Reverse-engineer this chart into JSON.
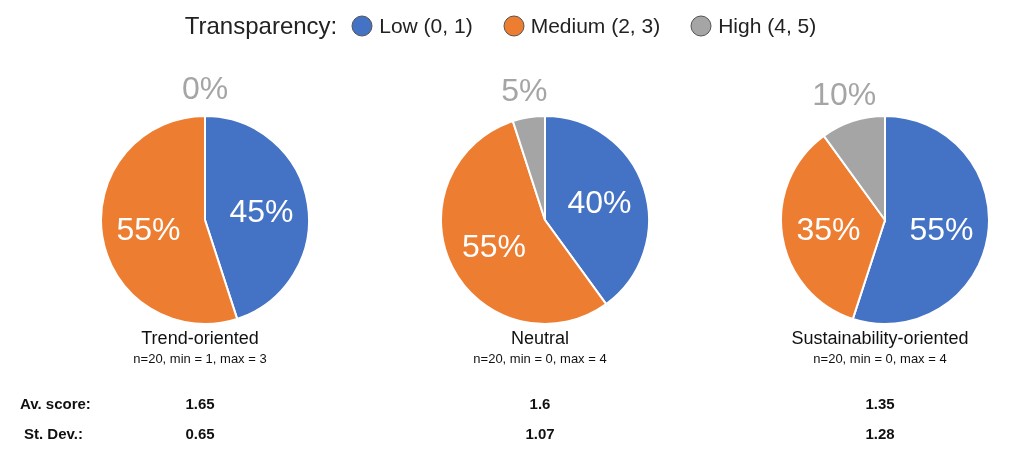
{
  "chart_data": [
    {
      "type": "pie",
      "title": "Trend-oriented",
      "subtitle": "n=20, min = 1, max = 3",
      "legend_title": "Transparency:",
      "legend": "top",
      "categories": [
        "Low (0, 1)",
        "Medium (2, 3)",
        "High (4, 5)"
      ],
      "values": [
        45,
        55,
        0
      ],
      "value_labels": [
        "45%",
        "55%",
        "0%"
      ],
      "colors": [
        "#4472c4",
        "#ed7d31",
        "#a5a5a5"
      ],
      "annotations": [
        "1.65",
        "0.65"
      ]
    },
    {
      "type": "pie",
      "title": "Neutral",
      "subtitle": "n=20, min = 0, max = 4",
      "categories": [
        null,
        null,
        null
      ],
      "values": [
        40,
        55,
        5
      ],
      "value_labels": [
        "40%",
        "55%",
        "5%"
      ],
      "colors": [
        "#4472c4",
        "#ed7d31",
        "#a5a5a5"
      ],
      "annotations": [
        "1.6",
        "1.07"
      ]
    },
    {
      "type": "pie",
      "title": "Sustainability-oriented",
      "subtitle": "n=20, min = 0, max = 4",
      "categories": [
        null,
        null,
        null
      ],
      "values": [
        55,
        35,
        10
      ],
      "value_labels": [
        "55%",
        "35%",
        "10%"
      ],
      "colors": [
        "#4472c4",
        "#ed7d31",
        "#a5a5a5"
      ],
      "annotations": [
        "1.35",
        "1.28"
      ]
    },
    {
      "type": "other",
      "annotations": [
        "Av. score:",
        "St. Dev.:"
      ]
    }
  ]
}
